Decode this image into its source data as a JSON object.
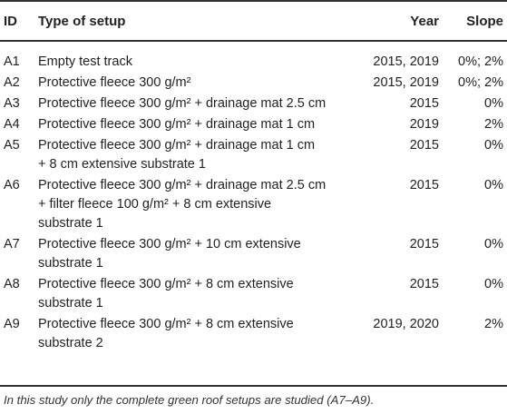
{
  "header": {
    "id": "ID",
    "type": "Type of setup",
    "year": "Year",
    "slope": "Slope"
  },
  "rows": [
    {
      "id": "A1",
      "lines": [
        "Empty test track"
      ],
      "year": "2015, 2019",
      "slope": "0%; 2%"
    },
    {
      "id": "A2",
      "lines": [
        "Protective fleece 300 g/m²"
      ],
      "year": "2015, 2019",
      "slope": "0%; 2%"
    },
    {
      "id": "A3",
      "lines": [
        "Protective fleece 300 g/m² + drainage mat 2.5 cm"
      ],
      "year": "2015",
      "slope": "0%"
    },
    {
      "id": "A4",
      "lines": [
        "Protective fleece 300 g/m² + drainage mat 1 cm"
      ],
      "year": "2019",
      "slope": "2%"
    },
    {
      "id": "A5",
      "lines": [
        "Protective fleece 300 g/m² + drainage mat 1 cm",
        "+ 8 cm extensive substrate 1"
      ],
      "year": "2015",
      "slope": "0%"
    },
    {
      "id": "A6",
      "lines": [
        "Protective fleece 300 g/m² + drainage mat 2.5 cm",
        "+ filter fleece 100 g/m² + 8 cm extensive",
        "substrate 1"
      ],
      "year": "2015",
      "slope": "0%"
    },
    {
      "id": "A7",
      "lines": [
        "Protective fleece 300 g/m² + 10 cm extensive",
        "substrate 1"
      ],
      "year": "2015",
      "slope": "0%"
    },
    {
      "id": "A8",
      "lines": [
        "Protective fleece 300 g/m² + 8 cm extensive",
        "substrate 1"
      ],
      "year": "2015",
      "slope": "0%"
    },
    {
      "id": "A9",
      "lines": [
        "Protective fleece 300 g/m² + 8 cm extensive",
        "substrate 2"
      ],
      "year": "2019, 2020",
      "slope": "2%"
    }
  ],
  "footnote": "In this study only the complete green roof setups are studied (A7–A9)."
}
